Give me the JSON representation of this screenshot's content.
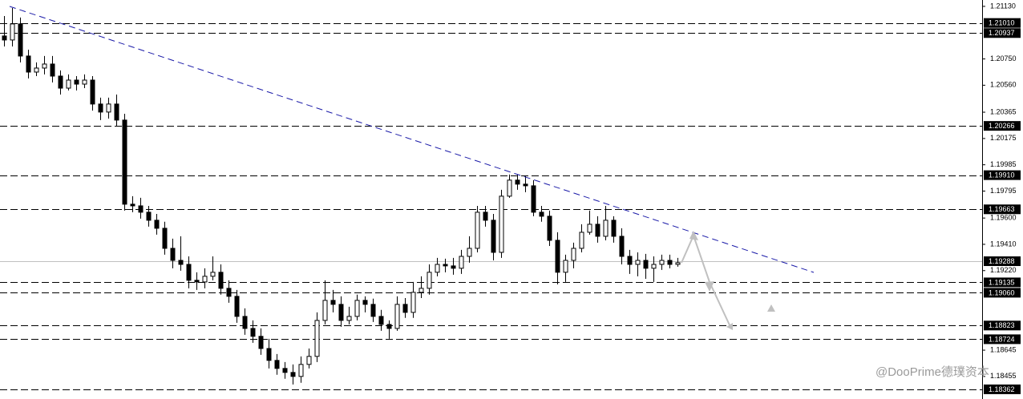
{
  "chart_data": {
    "type": "candlestick",
    "up_color": "#ffffff",
    "down_color": "#000000",
    "color": "#000000",
    "ylim": [
      1.18292,
      1.21176
    ],
    "yticks": [
      {
        "value": 1.2113,
        "label": "1.21130"
      },
      {
        "value": 1.2075,
        "label": "1.20750"
      },
      {
        "value": 1.2056,
        "label": "1.20560"
      },
      1.20365,
      1.20175,
      1.19985,
      1.19795,
      {
        "value": 1.196,
        "label": "1.19600"
      },
      {
        "value": 1.1941,
        "label": "1.19410"
      },
      {
        "value": 1.1922,
        "label": "1.19220"
      },
      1.18645,
      1.18455
    ],
    "levels": [
      {
        "value": 1.2101,
        "label": "1.21010"
      },
      {
        "value": 1.20937,
        "label": "1.20937"
      },
      {
        "value": 1.20266,
        "label": "1.20266"
      },
      {
        "value": 1.1991,
        "label": "1.19910"
      },
      {
        "value": 1.19663,
        "label": "1.19663"
      },
      {
        "value": 1.19135,
        "label": "1.19135"
      },
      {
        "value": 1.1906,
        "label": "1.19060"
      },
      {
        "value": 1.18823,
        "label": "1.18823"
      },
      {
        "value": 1.18724,
        "label": "1.18724"
      },
      {
        "value": 1.18362,
        "label": "1.18362"
      }
    ],
    "current_price": {
      "value": 1.19288,
      "label": "1.19288"
    },
    "watermark": "@DooPrime德璞资本",
    "open": [
      1.20916,
      1.20887,
      1.21003,
      1.20771,
      1.20655,
      1.20684,
      1.20713,
      1.20626,
      1.20539,
      1.20597,
      1.20568,
      1.20597,
      1.20424,
      1.20366,
      1.20424,
      1.20308,
      1.197,
      1.19688,
      1.19642,
      1.19584,
      1.19526,
      1.19381,
      1.19294,
      1.19265,
      1.1915,
      1.19138,
      1.19179,
      1.19208,
      1.19092,
      1.19034,
      1.18889,
      1.18802,
      1.18745,
      1.18657,
      1.18571,
      1.18513,
      1.18484,
      1.18455,
      1.18542,
      1.186,
      1.1886,
      1.19005,
      1.18976,
      1.1886,
      1.18889,
      1.19005,
      1.18976,
      1.18889,
      1.18831,
      1.18802,
      1.18976,
      1.18918,
      1.19063,
      1.19092,
      1.19208,
      1.19265,
      1.19254,
      1.19237,
      1.19323,
      1.19381,
      1.19642,
      1.19584,
      1.19352,
      1.19758,
      1.19874,
      1.19845,
      1.19833,
      1.19642,
      1.19613,
      1.19439,
      1.19208,
      1.19294,
      1.19381,
      1.19497,
      1.19555,
      1.19468,
      1.19584,
      1.19468,
      1.19323,
      1.19265,
      1.19294,
      1.19237,
      1.19265,
      1.19294,
      1.19265
    ],
    "high": [
      1.2106,
      1.21118,
      1.21049,
      1.20817,
      1.20725,
      1.20771,
      1.20771,
      1.20667,
      1.20638,
      1.20626,
      1.20638,
      1.20626,
      1.2047,
      1.2047,
      1.20493,
      1.20354,
      1.19758,
      1.19746,
      1.19688,
      1.1963,
      1.19573,
      1.19451,
      1.19468,
      1.19323,
      1.19208,
      1.19237,
      1.19323,
      1.19265,
      1.1915,
      1.1908,
      1.18947,
      1.1886,
      1.18802,
      1.18727,
      1.18617,
      1.18559,
      1.18542,
      1.186,
      1.18657,
      1.18918,
      1.1915,
      1.1908,
      1.19034,
      1.18959,
      1.19046,
      1.19034,
      1.19017,
      1.18936,
      1.1886,
      1.19034,
      1.19022,
      1.19138,
      1.19179,
      1.19265,
      1.19312,
      1.19306,
      1.19312,
      1.1937,
      1.19468,
      1.19688,
      1.19688,
      1.1963,
      1.19804,
      1.19914,
      1.19914,
      1.19903,
      1.19874,
      1.19688,
      1.19654,
      1.19497,
      1.19335,
      1.19422,
      1.19555,
      1.19654,
      1.19613,
      1.19688,
      1.19613,
      1.19526,
      1.1937,
      1.19352,
      1.19341,
      1.19323,
      1.19335,
      1.19335,
      1.19312
    ],
    "low": [
      1.2084,
      1.2084,
      1.20725,
      1.20609,
      1.20626,
      1.20638,
      1.2058,
      1.20493,
      1.20522,
      1.20522,
      1.20539,
      1.20377,
      1.20308,
      1.20319,
      1.20262,
      1.19654,
      1.19642,
      1.19596,
      1.19538,
      1.1948,
      1.19335,
      1.19237,
      1.19219,
      1.19092,
      1.1908,
      1.19092,
      1.1915,
      1.19046,
      1.18988,
      1.18843,
      1.18756,
      1.18698,
      1.18611,
      1.18513,
      1.18467,
      1.18438,
      1.18397,
      1.18409,
      1.18513,
      1.18559,
      1.18831,
      1.18918,
      1.18814,
      1.18831,
      1.1886,
      1.18918,
      1.18849,
      1.18785,
      1.18727,
      1.18785,
      1.18878,
      1.18878,
      1.19022,
      1.19046,
      1.19179,
      1.19208,
      1.1919,
      1.19196,
      1.19277,
      1.19352,
      1.19538,
      1.19294,
      1.19312,
      1.19746,
      1.19804,
      1.19787,
      1.19613,
      1.19573,
      1.19398,
      1.19121,
      1.19138,
      1.19237,
      1.19352,
      1.1948,
      1.19422,
      1.19439,
      1.19422,
      1.19265,
      1.19196,
      1.19179,
      1.19161,
      1.19138,
      1.19225,
      1.19237,
      1.19248
    ],
    "close": [
      1.20887,
      1.21003,
      1.20771,
      1.20655,
      1.20684,
      1.20713,
      1.20626,
      1.20539,
      1.20597,
      1.20568,
      1.20597,
      1.20424,
      1.20366,
      1.20424,
      1.20308,
      1.197,
      1.19688,
      1.19642,
      1.19584,
      1.19526,
      1.19381,
      1.19294,
      1.19265,
      1.1915,
      1.19138,
      1.19179,
      1.19208,
      1.19092,
      1.19034,
      1.18889,
      1.18802,
      1.18745,
      1.18657,
      1.18571,
      1.18513,
      1.18484,
      1.18455,
      1.18542,
      1.186,
      1.1886,
      1.19005,
      1.18976,
      1.1886,
      1.18889,
      1.19005,
      1.18976,
      1.18889,
      1.18831,
      1.18802,
      1.18976,
      1.18918,
      1.19063,
      1.19092,
      1.19208,
      1.19265,
      1.19254,
      1.19237,
      1.19323,
      1.19381,
      1.19642,
      1.19584,
      1.19352,
      1.19758,
      1.19874,
      1.19845,
      1.19833,
      1.19642,
      1.19613,
      1.19439,
      1.19208,
      1.19294,
      1.19381,
      1.19497,
      1.19555,
      1.19468,
      1.19584,
      1.19468,
      1.19323,
      1.19265,
      1.19294,
      1.19237,
      1.19265,
      1.19294,
      1.19265,
      1.19277
    ]
  }
}
